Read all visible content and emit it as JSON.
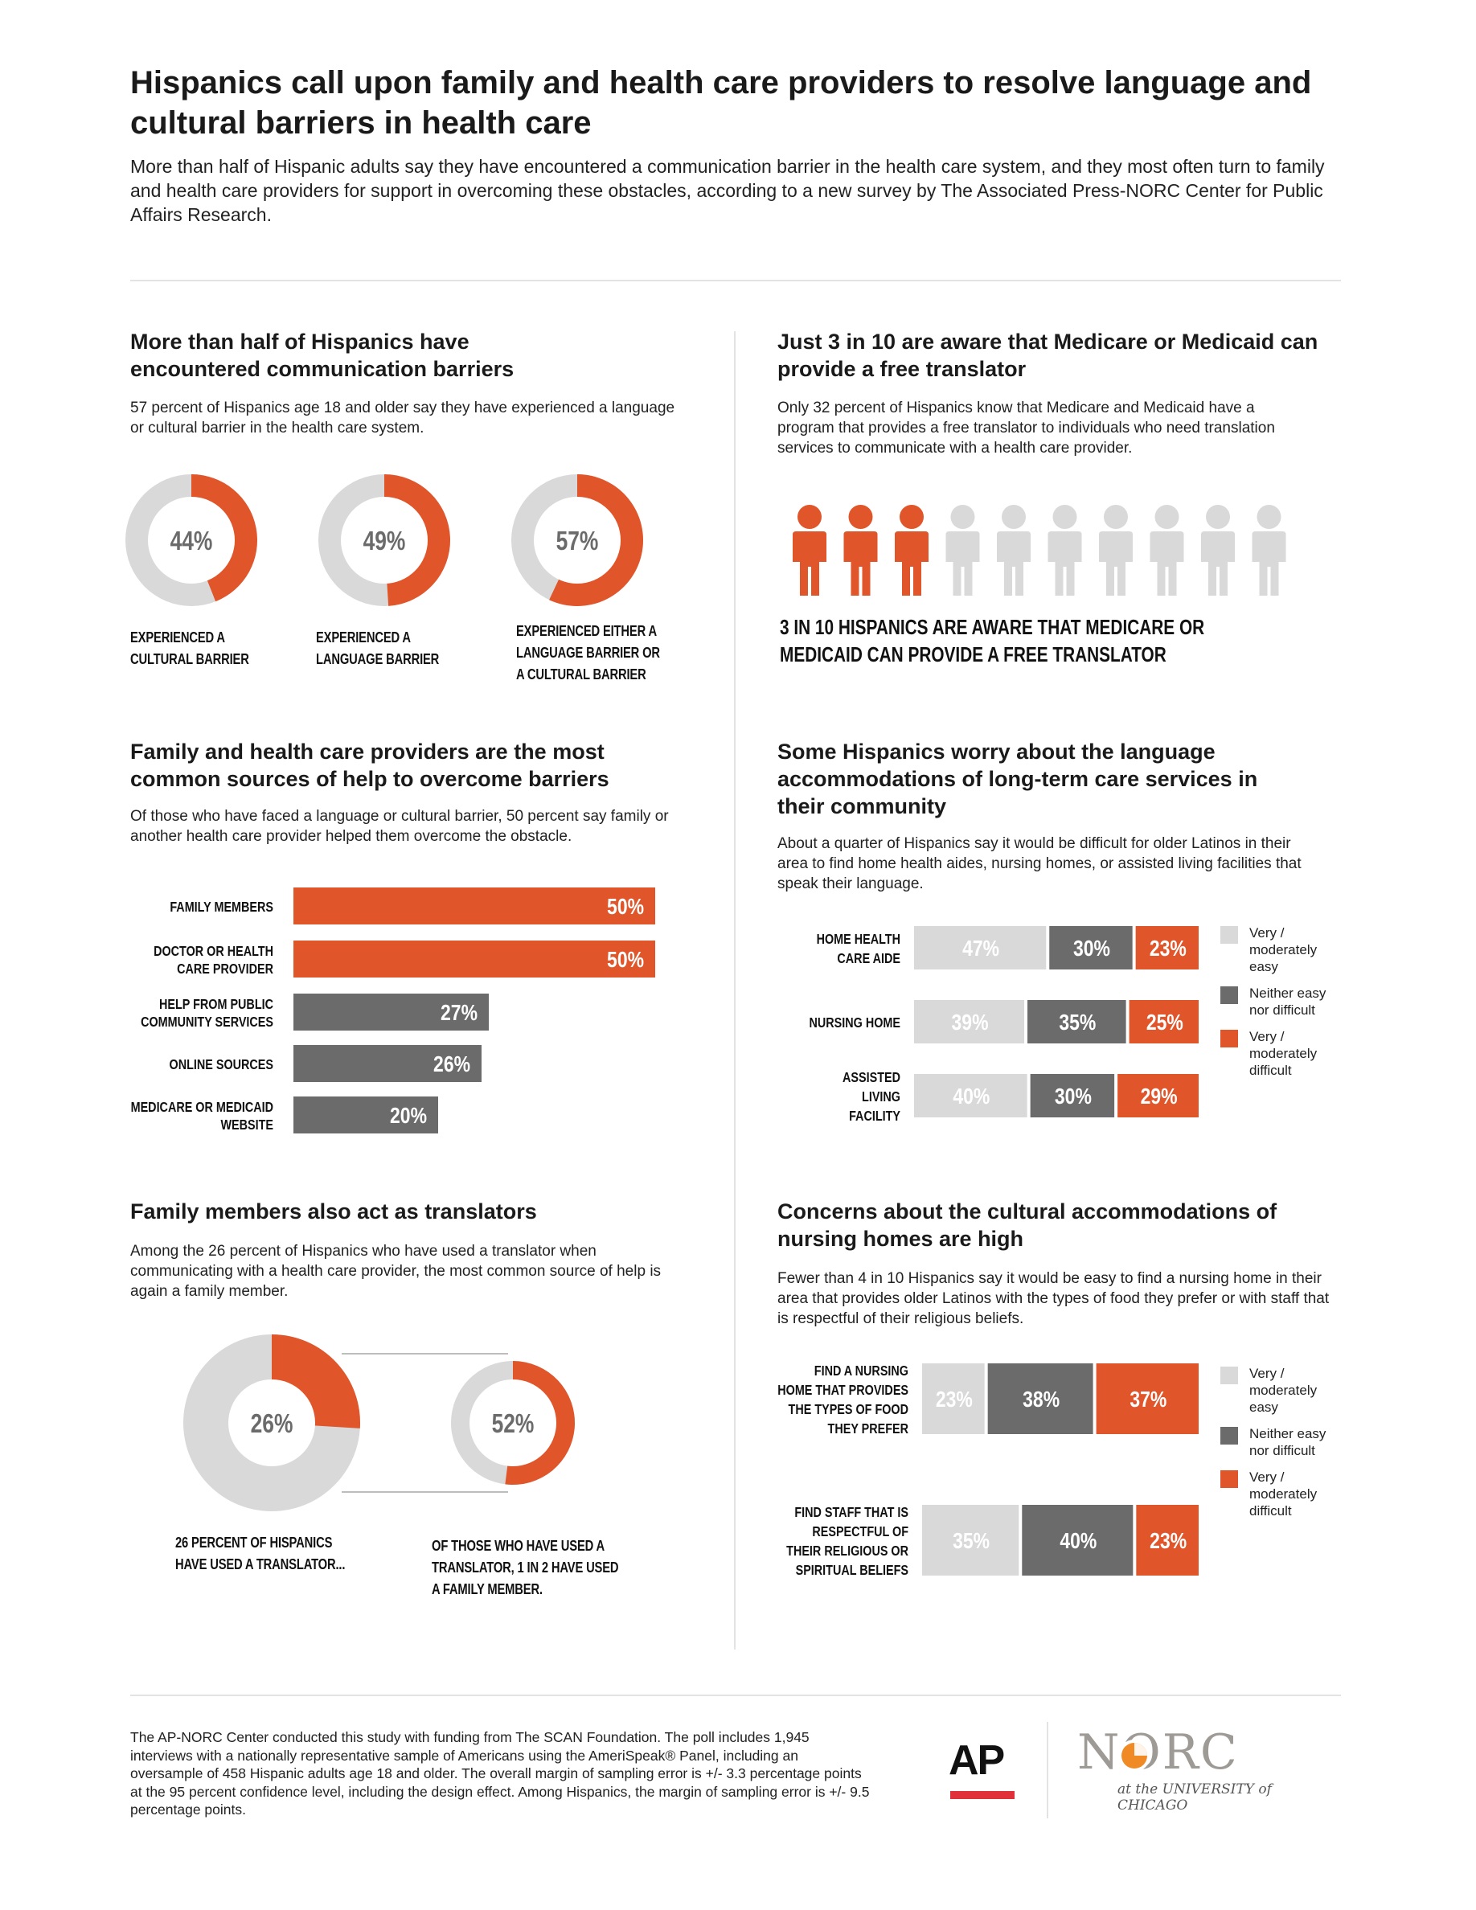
{
  "header": {
    "title": "Hispanics call upon family and health care providers to resolve language and cultural barriers in health care",
    "intro": "More than half of Hispanic adults say they have encountered a communication barrier in the health care system, and they most often turn to family and health care providers for support in overcoming these obstacles, according to a new survey by The Associated Press-NORC Center for Public Affairs Research."
  },
  "colors": {
    "orange": "#e0552a",
    "dark_gray": "#6b6b6b",
    "light_gray": "#d9d9d9"
  },
  "section1": {
    "title": "More than half of Hispanics have encountered communication barriers",
    "text": "57 percent of Hispanics age 18 and older say they have experienced a language or cultural barrier in the health care system."
  },
  "section2": {
    "title": "Just 3 in 10 are aware that Medicare or Medicaid can provide a free translator",
    "text": "Only 32 percent of Hispanics know that Medicare and Medicaid have a program that provides a free translator to individuals who need translation services to communicate with a health care provider.",
    "caption": "3 in 10 Hispanics are aware that Medicare or Medicaid can provide a free translator"
  },
  "section3": {
    "title": "Family and health care providers are the most common sources of help to overcome barriers",
    "text": "Of those who have faced a language or cultural barrier, 50 percent say family or another health care provider helped them overcome the obstacle."
  },
  "section4": {
    "title": "Some Hispanics worry about the language accommodations of long-term care services in their community",
    "text": "About a quarter of Hispanics say it would be difficult for older Latinos in their area to find home health aides, nursing homes, or assisted living facilities that speak their language."
  },
  "section5": {
    "title": "Family members also act as translators",
    "text": "Among the 26 percent of Hispanics who have used a translator when communicating with a health care provider, the most common source of help is again a family member."
  },
  "section6": {
    "title": "Concerns about the cultural accommodations of nursing homes are high",
    "text": "Fewer than 4 in 10 Hispanics say it would be easy to find a nursing home in their area that provides older Latinos with the types of food they prefer or with staff that is respectful of their religious beliefs."
  },
  "legend": {
    "easy": "Very / moderately easy",
    "neither": "Neither easy nor difficult",
    "difficult": "Very / moderately difficult"
  },
  "footer": {
    "text": "The AP-NORC Center conducted this study with funding from The SCAN Foundation. The poll includes 1,945 interviews with a nationally representative sample of Americans using the AmeriSpeak® Panel, including an oversample of 458 Hispanic adults age 18 and older. The overall margin of sampling error is +/- 3.3 percentage points at the 95 percent confidence level, including the design effect. Among Hispanics, the margin of sampling error is +/- 9.5 percentage points.",
    "ap_logo": "AP",
    "norc_logo": "NORC",
    "norc_sub": "at the UNIVERSITY of CHICAGO"
  },
  "chart_data": [
    {
      "type": "pie",
      "id": "barriers",
      "items": [
        {
          "value": 44,
          "label": "44%",
          "caption": "Experienced a cultural barrier"
        },
        {
          "value": 49,
          "label": "49%",
          "caption": "Experienced a language barrier"
        },
        {
          "value": 57,
          "label": "57%",
          "caption": "Experienced either a language barrier or a cultural barrier"
        }
      ]
    },
    {
      "type": "pictograph",
      "id": "translator-awareness",
      "total": 10,
      "highlighted": 3
    },
    {
      "type": "bar",
      "id": "sources-of-help",
      "categories": [
        "Family members",
        "Doctor or health care provider",
        "Help from public community services",
        "Online sources",
        "Medicare or Medicaid website"
      ],
      "values": [
        50,
        50,
        27,
        26,
        20
      ],
      "labels": [
        "50%",
        "50%",
        "27%",
        "26%",
        "20%"
      ]
    },
    {
      "type": "bar",
      "id": "language-accommodations",
      "stacked": true,
      "categories": [
        "Home health care aide",
        "Nursing home",
        "Assisted living facility"
      ],
      "series": [
        {
          "name": "Very / moderately easy",
          "values": [
            47,
            39,
            40
          ]
        },
        {
          "name": "Neither easy nor difficult",
          "values": [
            30,
            35,
            30
          ]
        },
        {
          "name": "Very / moderately difficult",
          "values": [
            23,
            25,
            29
          ]
        }
      ]
    },
    {
      "type": "pie",
      "id": "translators",
      "items": [
        {
          "value": 26,
          "label": "26%",
          "caption": "26 percent of Hispanics have used a translator..."
        },
        {
          "value": 52,
          "label": "52%",
          "caption": "Of those who have used a translator, 1 in 2 have used a family member."
        }
      ]
    },
    {
      "type": "bar",
      "id": "cultural-accommodations",
      "stacked": true,
      "categories": [
        "Find a nursing home that provides the types of food they prefer",
        "Find staff that is respectful of their religious or spiritual beliefs"
      ],
      "series": [
        {
          "name": "Very / moderately easy",
          "values": [
            23,
            35
          ]
        },
        {
          "name": "Neither easy nor difficult",
          "values": [
            38,
            40
          ]
        },
        {
          "name": "Very / moderately difficult",
          "values": [
            37,
            23
          ]
        }
      ]
    }
  ]
}
